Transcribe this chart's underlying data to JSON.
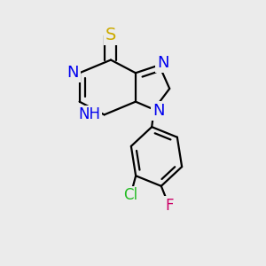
{
  "bg_color": "#ebebeb",
  "bond_color": "#000000",
  "bond_width": 1.6,
  "atoms": {
    "S": {
      "label": "S",
      "color": "#ccaa00",
      "fontsize": 13
    },
    "N1": {
      "label": "N",
      "color": "#0000ee",
      "fontsize": 13
    },
    "N2": {
      "label": "N",
      "color": "#0000ee",
      "fontsize": 13
    },
    "N3": {
      "label": "N",
      "color": "#0000ee",
      "fontsize": 13
    },
    "NH": {
      "label": "NH",
      "color": "#0000ee",
      "fontsize": 12
    },
    "Cl": {
      "label": "Cl",
      "color": "#22bb22",
      "fontsize": 12
    },
    "F": {
      "label": "F",
      "color": "#cc0066",
      "fontsize": 12
    }
  }
}
